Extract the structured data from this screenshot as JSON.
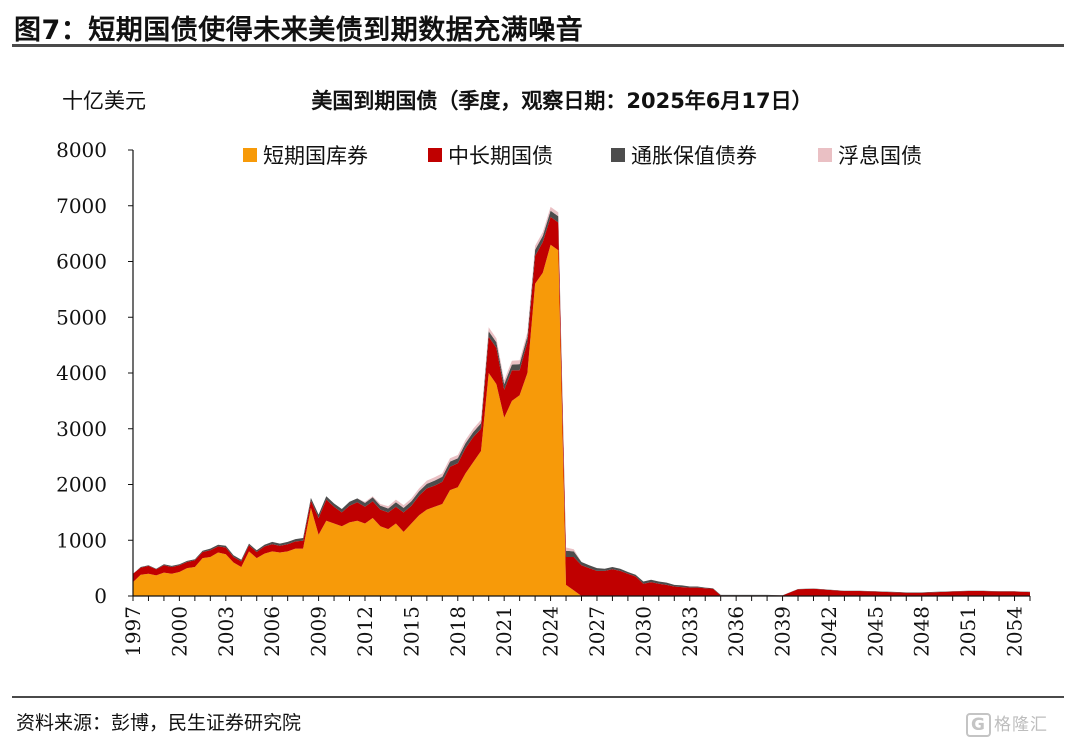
{
  "figure": {
    "title": "图7：短期国债使得未来美债到期数据充满噪音",
    "source": "资料来源：彭博，民生证券研究院",
    "watermark": "格隆汇",
    "watermark_mark": "G"
  },
  "chart_data": {
    "type": "area",
    "stacked": true,
    "title": "美国到期国债（季度，观察日期：2025年6月17日）",
    "ylabel": "十亿美元",
    "xlabel": "",
    "ylim": [
      0,
      8000
    ],
    "yticks": [
      0,
      1000,
      2000,
      3000,
      4000,
      5000,
      6000,
      7000,
      8000
    ],
    "xlim": [
      1997,
      2055
    ],
    "xticks": [
      1997,
      2000,
      2003,
      2006,
      2009,
      2012,
      2015,
      2018,
      2021,
      2024,
      2027,
      2030,
      2033,
      2036,
      2039,
      2042,
      2045,
      2048,
      2051,
      2054
    ],
    "grid": false,
    "legend": {
      "position": "top"
    },
    "x": [
      1997.0,
      1997.5,
      1998.0,
      1998.5,
      1999.0,
      1999.5,
      2000.0,
      2000.5,
      2001.0,
      2001.5,
      2002.0,
      2002.5,
      2003.0,
      2003.5,
      2004.0,
      2004.5,
      2005.0,
      2005.5,
      2006.0,
      2006.5,
      2007.0,
      2007.5,
      2008.0,
      2008.5,
      2009.0,
      2009.5,
      2010.0,
      2010.5,
      2011.0,
      2011.5,
      2012.0,
      2012.5,
      2013.0,
      2013.5,
      2014.0,
      2014.5,
      2015.0,
      2015.5,
      2016.0,
      2016.5,
      2017.0,
      2017.5,
      2018.0,
      2018.5,
      2019.0,
      2019.5,
      2020.0,
      2020.5,
      2021.0,
      2021.5,
      2022.0,
      2022.5,
      2023.0,
      2023.5,
      2024.0,
      2024.5,
      2025.0,
      2025.5,
      2026.0,
      2026.5,
      2027.0,
      2027.5,
      2028.0,
      2028.5,
      2029.0,
      2029.5,
      2030.0,
      2030.5,
      2031.0,
      2031.5,
      2032.0,
      2032.5,
      2033.0,
      2033.5,
      2034.0,
      2034.5,
      2035.0,
      2035.5,
      2036.0,
      2037.0,
      2038.0,
      2039.0,
      2040.0,
      2041.0,
      2042.0,
      2043.0,
      2044.0,
      2045.0,
      2046.0,
      2047.0,
      2048.0,
      2049.0,
      2050.0,
      2051.0,
      2052.0,
      2053.0,
      2054.0,
      2055.0
    ],
    "series": [
      {
        "name": "短期国库券",
        "color": "#F79A09",
        "values": [
          250,
          380,
          400,
          370,
          420,
          400,
          430,
          500,
          520,
          680,
          700,
          780,
          750,
          600,
          520,
          800,
          680,
          760,
          800,
          780,
          800,
          850,
          850,
          1580,
          1100,
          1350,
          1300,
          1250,
          1320,
          1350,
          1300,
          1400,
          1250,
          1200,
          1300,
          1150,
          1300,
          1450,
          1550,
          1600,
          1650,
          1900,
          1950,
          2200,
          2400,
          2600,
          4000,
          3800,
          3200,
          3500,
          3600,
          4000,
          5600,
          5800,
          6300,
          6200,
          200,
          100,
          0,
          0,
          0,
          0,
          0,
          0,
          0,
          0,
          0,
          0,
          0,
          0,
          0,
          0,
          0,
          0,
          0,
          0,
          0,
          0,
          0,
          0,
          0,
          0,
          0,
          0,
          0,
          0,
          0,
          0,
          0,
          0,
          0,
          0,
          0,
          0,
          0,
          0,
          0,
          0
        ]
      },
      {
        "name": "中长期国债",
        "color": "#C00000",
        "values": [
          150,
          130,
          140,
          110,
          130,
          120,
          120,
          110,
          120,
          110,
          120,
          110,
          120,
          100,
          100,
          110,
          110,
          130,
          130,
          120,
          130,
          130,
          140,
          130,
          300,
          380,
          300,
          250,
          300,
          330,
          300,
          300,
          300,
          300,
          300,
          350,
          320,
          350,
          380,
          380,
          400,
          420,
          430,
          450,
          450,
          400,
          650,
          650,
          500,
          550,
          450,
          550,
          500,
          550,
          500,
          500,
          500,
          600,
          550,
          500,
          450,
          450,
          480,
          450,
          400,
          350,
          220,
          250,
          220,
          200,
          170,
          160,
          150,
          150,
          140,
          130,
          10,
          10,
          10,
          10,
          10,
          10,
          120,
          130,
          110,
          90,
          90,
          80,
          70,
          60,
          60,
          70,
          80,
          90,
          90,
          80,
          80,
          70
        ]
      },
      {
        "name": "通胀保值债券",
        "color": "#4D4D4D",
        "values": [
          0,
          10,
          10,
          10,
          20,
          20,
          20,
          20,
          20,
          20,
          30,
          30,
          30,
          30,
          30,
          30,
          30,
          30,
          40,
          40,
          40,
          40,
          50,
          50,
          60,
          60,
          60,
          60,
          70,
          70,
          70,
          70,
          70,
          70,
          80,
          80,
          80,
          80,
          80,
          90,
          90,
          90,
          90,
          90,
          90,
          100,
          100,
          100,
          100,
          100,
          110,
          110,
          110,
          110,
          110,
          110,
          110,
          100,
          60,
          50,
          50,
          40,
          40,
          40,
          30,
          30,
          40,
          40,
          40,
          40,
          30,
          30,
          20,
          20,
          10,
          10,
          10,
          10,
          10,
          10,
          10,
          5,
          5,
          5,
          5,
          5,
          5,
          5,
          5,
          5,
          5,
          5,
          5,
          5,
          5,
          5,
          5,
          5
        ]
      },
      {
        "name": "浮息国债",
        "color": "#EAC0C4",
        "values": [
          0,
          0,
          0,
          0,
          0,
          0,
          0,
          0,
          0,
          0,
          0,
          0,
          0,
          0,
          0,
          0,
          0,
          0,
          0,
          0,
          0,
          0,
          0,
          0,
          0,
          0,
          0,
          0,
          0,
          0,
          20,
          20,
          30,
          40,
          50,
          50,
          50,
          50,
          60,
          60,
          60,
          60,
          60,
          60,
          60,
          60,
          70,
          70,
          70,
          70,
          70,
          70,
          70,
          70,
          70,
          70,
          60,
          40,
          0,
          0,
          0,
          0,
          0,
          0,
          0,
          0,
          0,
          0,
          0,
          0,
          0,
          0,
          0,
          0,
          0,
          0,
          0,
          0,
          0,
          0,
          0,
          0,
          0,
          0,
          0,
          0,
          0,
          0,
          0,
          0,
          0,
          0,
          0,
          0,
          0,
          0,
          0,
          0
        ]
      }
    ]
  }
}
